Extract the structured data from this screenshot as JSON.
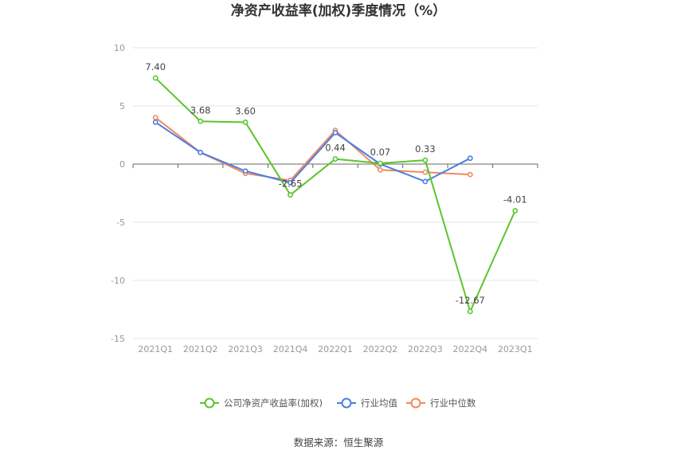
{
  "chart_data": {
    "type": "line",
    "title": "净资产收益率(加权)季度情况（%）",
    "xlabel": "",
    "ylabel": "",
    "categories": [
      "2021Q1",
      "2021Q2",
      "2021Q3",
      "2021Q4",
      "2022Q1",
      "2022Q2",
      "2022Q3",
      "2022Q4",
      "2023Q1"
    ],
    "ylim": [
      -15,
      10
    ],
    "yticks": [
      10,
      5,
      0,
      -5,
      -10,
      -15
    ],
    "grid": true,
    "legend_position": "bottom",
    "series": [
      {
        "name": "公司净资产收益率(加权)",
        "color": "#5cc52c",
        "values": [
          7.4,
          3.68,
          3.6,
          -2.65,
          0.44,
          0.07,
          0.33,
          -12.67,
          -4.01
        ],
        "labels": [
          "7.40",
          "3.68",
          "3.60",
          "-2.65",
          "0.44",
          "0.07",
          "0.33",
          "-12.67",
          "-4.01"
        ]
      },
      {
        "name": "行业均值",
        "color": "#4a7fe0",
        "values": [
          3.6,
          1.0,
          -0.6,
          -1.6,
          2.7,
          0.0,
          -1.5,
          0.5,
          null
        ]
      },
      {
        "name": "行业中位数",
        "color": "#f08a5d",
        "values": [
          4.0,
          1.0,
          -0.8,
          -1.4,
          2.9,
          -0.5,
          -0.7,
          -0.9,
          null
        ]
      }
    ]
  },
  "source_text": "数据来源：恒生聚源"
}
